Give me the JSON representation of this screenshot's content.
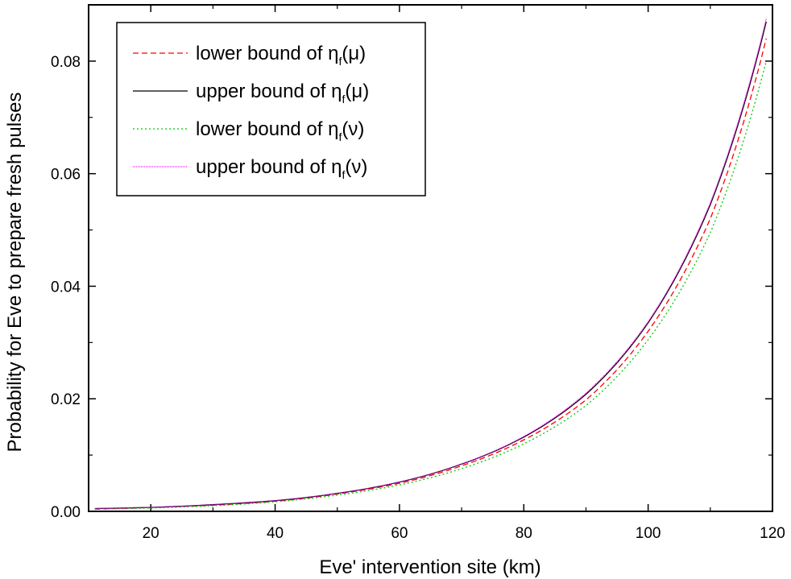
{
  "chart_data": {
    "type": "line",
    "title": "",
    "xlabel": "Eve' intervention site (km)",
    "ylabel": "Probability for Eve to prepare fresh pulses",
    "xlim": [
      10,
      120
    ],
    "ylim": [
      0,
      0.09
    ],
    "xticks": [
      20,
      40,
      60,
      80,
      100,
      120
    ],
    "xtick_labels": [
      "20",
      "40",
      "60",
      "80",
      "100",
      "120"
    ],
    "yticks": [
      0,
      0.02,
      0.04,
      0.06,
      0.08
    ],
    "ytick_labels": [
      "0.00",
      "0.02",
      "0.04",
      "0.06",
      "0.08"
    ],
    "grid": false,
    "legend_position": "top-left",
    "x": [
      11,
      20,
      30,
      40,
      50,
      60,
      70,
      80,
      90,
      100,
      110,
      119
    ],
    "series": [
      {
        "label_main": "lower bound of η",
        "label_sub": "f",
        "label_arg": "(μ)",
        "color": "#ff0000",
        "dash": "7,4",
        "values": [
          0.0004,
          0.0007,
          0.0011,
          0.0018,
          0.0031,
          0.005,
          0.0081,
          0.0127,
          0.0198,
          0.032,
          0.052,
          0.084
        ]
      },
      {
        "label_main": "upper bound of η",
        "label_sub": "f",
        "label_arg": "(μ)",
        "color": "#000000",
        "dash": "",
        "values": [
          0.0005,
          0.0007,
          0.0012,
          0.0019,
          0.0032,
          0.0052,
          0.0084,
          0.0132,
          0.0208,
          0.0335,
          0.0545,
          0.087
        ]
      },
      {
        "label_main": "lower bound of η",
        "label_sub": "f",
        "label_arg": "(ν)",
        "color": "#00cc00",
        "dash": "2,3",
        "values": [
          0.0004,
          0.0006,
          0.001,
          0.0017,
          0.0029,
          0.0047,
          0.0076,
          0.012,
          0.0188,
          0.0305,
          0.0495,
          0.08
        ]
      },
      {
        "label_main": "upper bound of η",
        "label_sub": "f",
        "label_arg": "(ν)",
        "color": "#ff00ff",
        "dash": "1,1",
        "values": [
          0.0005,
          0.0007,
          0.0012,
          0.0019,
          0.0032,
          0.0052,
          0.0084,
          0.0133,
          0.021,
          0.0337,
          0.0548,
          0.0875
        ]
      }
    ]
  }
}
